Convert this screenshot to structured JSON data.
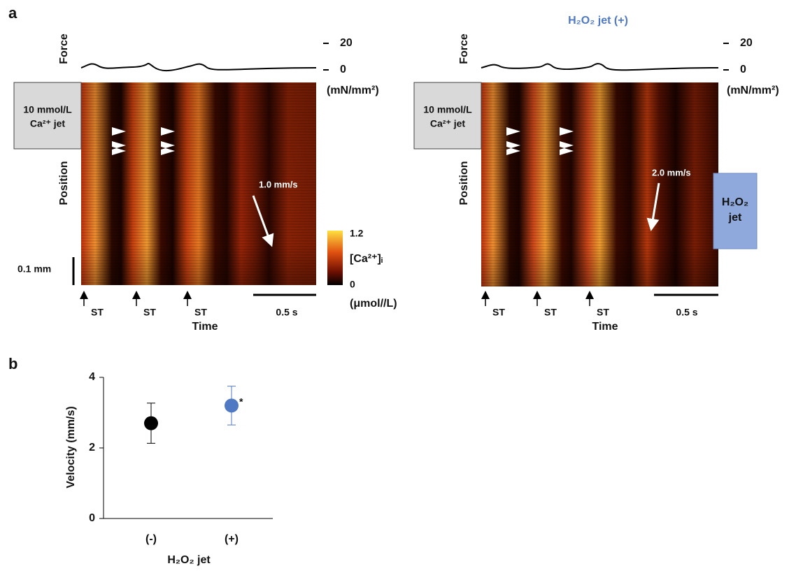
{
  "panel_labels": [
    "a",
    "b"
  ],
  "kymographs": [
    {
      "force_label": "Force",
      "force_ticks": [
        "20",
        "0"
      ],
      "force_unit": "(mN/mm²)",
      "jet_label": [
        "10 mmol/L",
        "Ca²⁺ jet"
      ],
      "position_label": "Position",
      "velocity_label": "1.0 mm/s",
      "st_labels": [
        "ST",
        "ST",
        "ST"
      ],
      "time_label": "Time",
      "time_scale": "0.5 s",
      "distance_scale": "0.1 mm",
      "colorbar": {
        "max": "1.2",
        "min": "0",
        "label": "[Ca²⁺]ᵢ",
        "unit": "(μmol//L)"
      }
    },
    {
      "title": "H₂O₂ jet (+)",
      "force_label": "Force",
      "force_ticks": [
        "20",
        "0"
      ],
      "force_unit": "(mN/mm²)",
      "jet_label": [
        "10 mmol/L",
        "Ca²⁺ jet"
      ],
      "position_label": "Position",
      "velocity_label": "2.0 mm/s",
      "st_labels": [
        "ST",
        "ST",
        "ST"
      ],
      "time_label": "Time",
      "time_scale": "0.5 s",
      "side_jet_label": [
        "H₂O₂",
        "jet"
      ]
    }
  ],
  "chart_data": {
    "type": "scatter",
    "categories": [
      "(-)",
      "(+)"
    ],
    "category_colors": [
      "#111111",
      "#5079c4"
    ],
    "values": [
      2.7,
      3.2
    ],
    "errors": [
      0.57,
      0.55
    ],
    "colors": [
      "#000000",
      "#5079c4"
    ],
    "ylim": [
      0,
      4
    ],
    "yticks": [
      0,
      2,
      4
    ],
    "y_label": "Velocity (mm/s)",
    "x_label": "H₂O₂ jet",
    "annotation": "*"
  }
}
